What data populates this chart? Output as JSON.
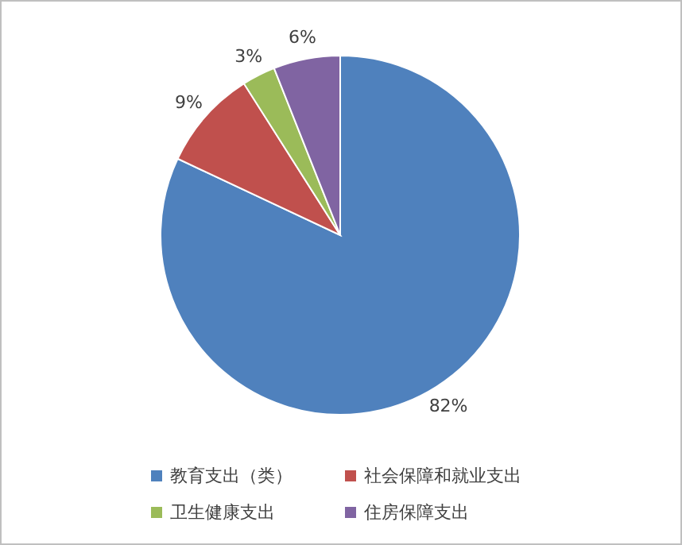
{
  "chart_data": {
    "type": "pie",
    "categories": [
      "教育支出（类）",
      "社会保障和就业支出",
      "卫生健康支出",
      "住房保障支出"
    ],
    "values": [
      82,
      9,
      3,
      6
    ],
    "colors": [
      "#4f81bd",
      "#c0504d",
      "#9bbb59",
      "#8064a2"
    ],
    "value_labels": [
      "82%",
      "9%",
      "3%",
      "6%"
    ],
    "legend": "bottom"
  }
}
